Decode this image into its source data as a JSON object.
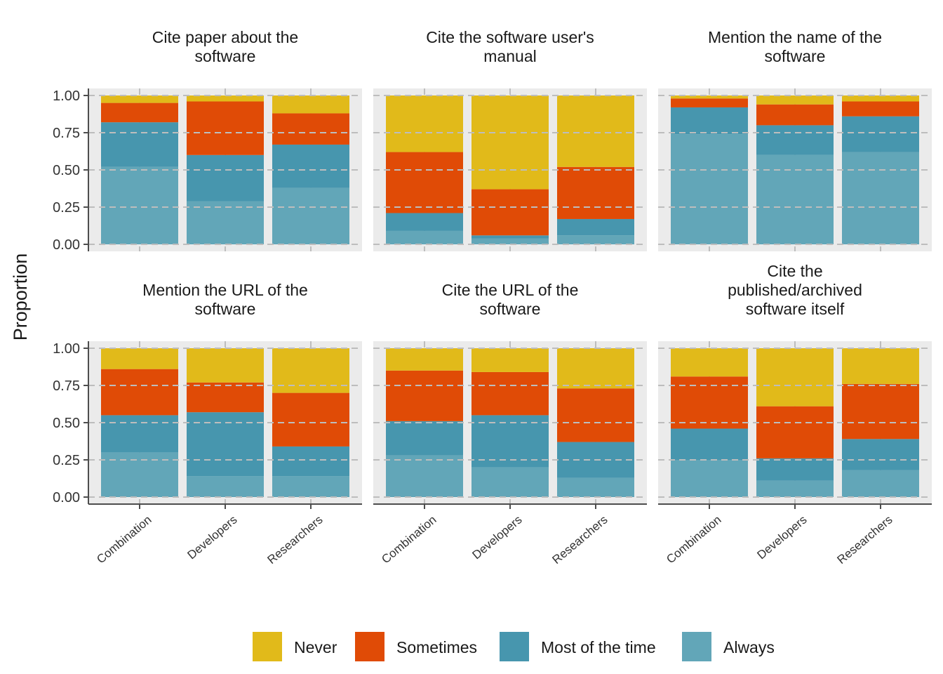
{
  "chart_data": {
    "type": "bar",
    "stacked": true,
    "ylabel": "Proportion",
    "xlabel": "",
    "ylim": [
      0,
      1
    ],
    "yticks": [
      "0.00",
      "0.25",
      "0.50",
      "0.75",
      "1.00"
    ],
    "categories": [
      "Combination",
      "Developers",
      "Researchers"
    ],
    "legend": {
      "position": "bottom",
      "entries": [
        {
          "name": "Never",
          "color": "#E1BA1A"
        },
        {
          "name": "Sometimes",
          "color": "#E04B06"
        },
        {
          "name": "Most of the time",
          "color": "#4796AE"
        },
        {
          "name": "Always",
          "color": "#62A6B8"
        }
      ]
    },
    "grid": true,
    "panels": [
      {
        "title": [
          "Cite paper about the",
          "software"
        ],
        "series": [
          {
            "name": "Always",
            "values": [
              0.52,
              0.29,
              0.38
            ]
          },
          {
            "name": "Most of the time",
            "values": [
              0.3,
              0.31,
              0.29
            ]
          },
          {
            "name": "Sometimes",
            "values": [
              0.13,
              0.36,
              0.21
            ]
          },
          {
            "name": "Never",
            "values": [
              0.05,
              0.04,
              0.12
            ]
          }
        ]
      },
      {
        "title": [
          "Cite the software user's",
          "manual"
        ],
        "series": [
          {
            "name": "Always",
            "values": [
              0.09,
              0.04,
              0.06
            ]
          },
          {
            "name": "Most of the time",
            "values": [
              0.12,
              0.02,
              0.11
            ]
          },
          {
            "name": "Sometimes",
            "values": [
              0.41,
              0.31,
              0.35
            ]
          },
          {
            "name": "Never",
            "values": [
              0.38,
              0.63,
              0.48
            ]
          }
        ]
      },
      {
        "title": [
          "Mention the name of the",
          "software"
        ],
        "series": [
          {
            "name": "Always",
            "values": [
              0.74,
              0.6,
              0.62
            ]
          },
          {
            "name": "Most of the time",
            "values": [
              0.18,
              0.2,
              0.24
            ]
          },
          {
            "name": "Sometimes",
            "values": [
              0.06,
              0.14,
              0.1
            ]
          },
          {
            "name": "Never",
            "values": [
              0.02,
              0.06,
              0.04
            ]
          }
        ]
      },
      {
        "title": [
          "Mention the URL of the",
          "software"
        ],
        "series": [
          {
            "name": "Always",
            "values": [
              0.3,
              0.14,
              0.14
            ]
          },
          {
            "name": "Most of the time",
            "values": [
              0.25,
              0.43,
              0.2
            ]
          },
          {
            "name": "Sometimes",
            "values": [
              0.31,
              0.2,
              0.36
            ]
          },
          {
            "name": "Never",
            "values": [
              0.14,
              0.23,
              0.3
            ]
          }
        ]
      },
      {
        "title": [
          "Cite the URL of the",
          "software"
        ],
        "series": [
          {
            "name": "Always",
            "values": [
              0.28,
              0.2,
              0.13
            ]
          },
          {
            "name": "Most of the time",
            "values": [
              0.23,
              0.35,
              0.24
            ]
          },
          {
            "name": "Sometimes",
            "values": [
              0.34,
              0.29,
              0.36
            ]
          },
          {
            "name": "Never",
            "values": [
              0.15,
              0.16,
              0.27
            ]
          }
        ]
      },
      {
        "title": [
          "Cite the",
          "published/archived",
          "software itself"
        ],
        "series": [
          {
            "name": "Always",
            "values": [
              0.25,
              0.11,
              0.18
            ]
          },
          {
            "name": "Most of the time",
            "values": [
              0.21,
              0.15,
              0.21
            ]
          },
          {
            "name": "Sometimes",
            "values": [
              0.35,
              0.35,
              0.37
            ]
          },
          {
            "name": "Never",
            "values": [
              0.19,
              0.39,
              0.24
            ]
          }
        ]
      }
    ]
  }
}
